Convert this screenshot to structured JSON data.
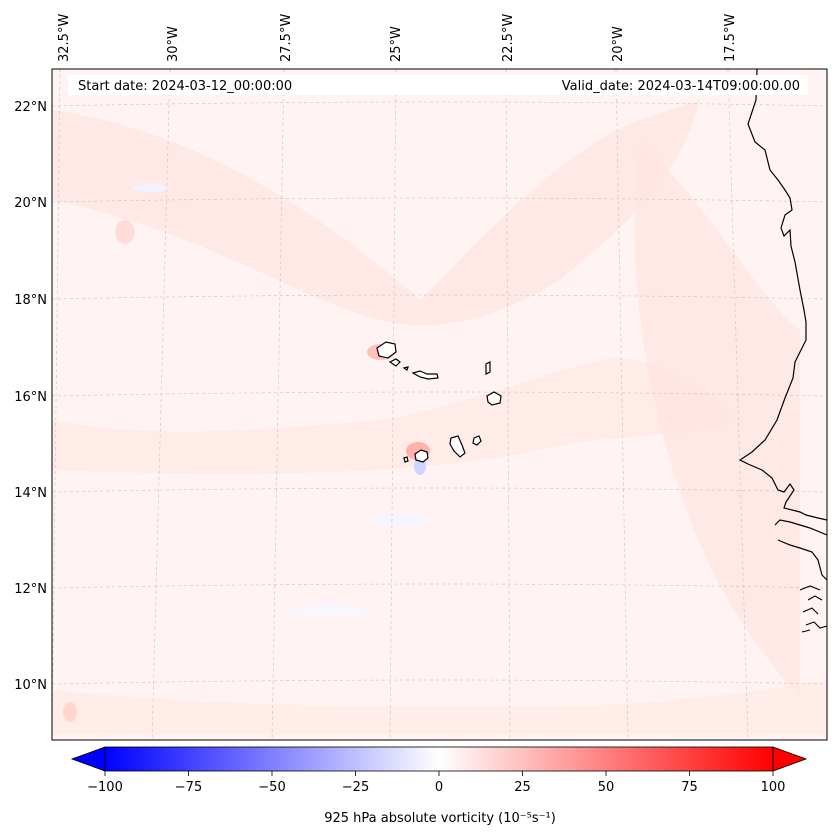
{
  "map": {
    "start_date": "Start date: 2024-03-12_00:00:00",
    "valid_date": "Valid_date: 2024-03-14T09:00:00.00",
    "lon_labels": [
      "32.5°W",
      "30°W",
      "27.5°W",
      "25°W",
      "22.5°W",
      "20°W",
      "17.5°W"
    ],
    "lat_labels": [
      "22°N",
      "20°N",
      "18°N",
      "16°N",
      "14°N",
      "12°N",
      "10°N"
    ],
    "field": "925 hPa absolute vorticity"
  },
  "colorbar": {
    "label": "925 hPa absolute vorticity (10⁻⁵s⁻¹)",
    "ticks": [
      "−100",
      "−75",
      "−50",
      "−25",
      "0",
      "25",
      "50",
      "75",
      "100"
    ],
    "min": -100,
    "max": 100,
    "negative_color": "#0000ff",
    "zero_color": "#ffffff",
    "positive_color": "#ff0000"
  },
  "colors": {
    "background_field": "#fff3f2",
    "coastline": "#000000",
    "gridline": "#bbbbbb"
  }
}
